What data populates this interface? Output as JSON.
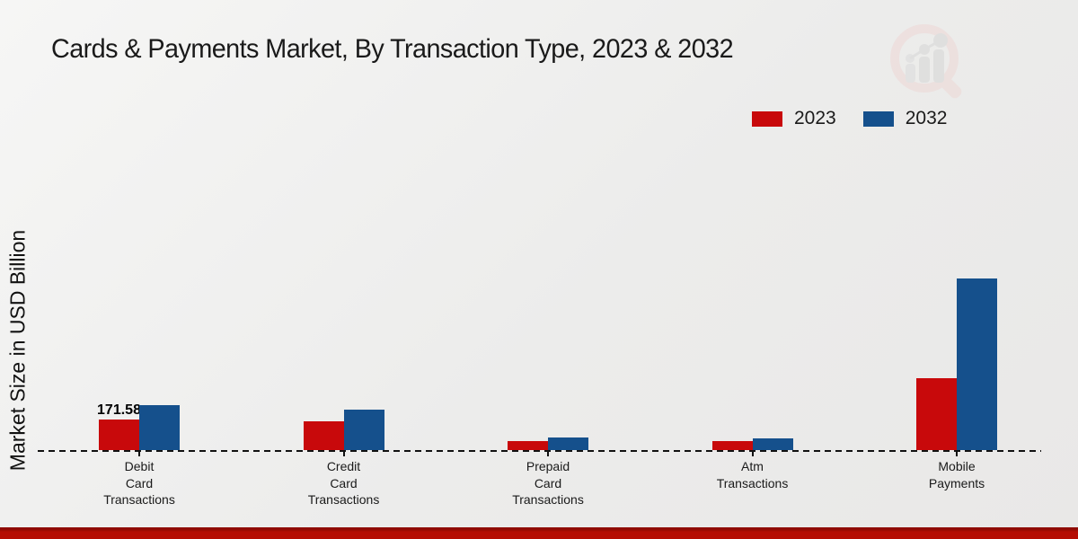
{
  "title": "Cards & Payments Market, By Transaction Type, 2023 & 2032",
  "y_axis_label": "Market Size in USD Billion",
  "colors": {
    "series_2023": "#c8090b",
    "series_2032": "#15508c",
    "footer_bar": "#b50d03",
    "background": "#ececeb",
    "text": "#1a1a1a"
  },
  "legend": {
    "position": "top-right",
    "items": [
      {
        "label": "2023",
        "color": "#c8090b"
      },
      {
        "label": "2032",
        "color": "#15508c"
      }
    ]
  },
  "watermark_icon": "magnifier-bar-chart-logo",
  "chart_data": {
    "type": "bar",
    "title": "Cards & Payments Market, By Transaction Type, 2023 & 2032",
    "xlabel": "",
    "ylabel": "Market Size in USD Billion",
    "categories": [
      "Debit Card Transactions",
      "Credit Card Transactions",
      "Prepaid Card Transactions",
      "Atm Transactions",
      "Mobile Payments"
    ],
    "category_label_lines": [
      [
        "Debit",
        "Card",
        "Transactions"
      ],
      [
        "Credit",
        "Card",
        "Transactions"
      ],
      [
        "Prepaid",
        "Card",
        "Transactions"
      ],
      [
        "Atm",
        "Transactions"
      ],
      [
        "Mobile",
        "Payments"
      ]
    ],
    "series": [
      {
        "name": "2023",
        "color": "#c8090b",
        "values": [
          171.58,
          160,
          50,
          50,
          404
        ]
      },
      {
        "name": "2032",
        "color": "#15508c",
        "values": [
          250,
          228,
          70,
          65,
          964
        ]
      }
    ],
    "ylim": [
      0,
      1000
    ],
    "grid": false,
    "axis_style": "dashed-baseline-only",
    "legend_position": "top-right",
    "annotations": [
      {
        "category_index": 0,
        "series": "2023",
        "text": "171.58"
      }
    ]
  }
}
